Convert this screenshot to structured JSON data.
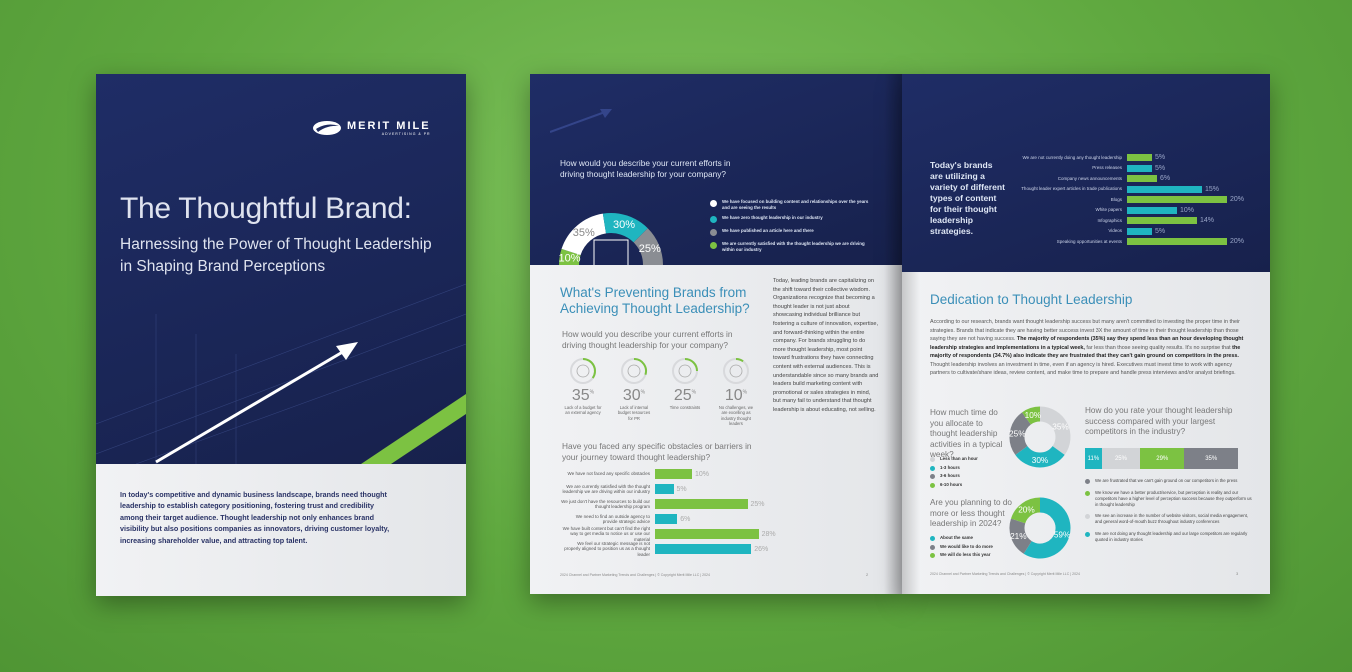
{
  "colors": {
    "navy": "#1e2a5e",
    "teal": "#1fb5c0",
    "green": "#7cc242",
    "gray": "#7d8088",
    "lightgray": "#d2d4d7",
    "white": "#ffffff",
    "heading": "#3b8fb8"
  },
  "cover": {
    "logo": {
      "name": "MERIT MILE",
      "tagline": "ADVERTISING & PR",
      "icon": "swoosh-logo-icon"
    },
    "title": "The Thoughtful Brand:",
    "subtitle_lines": [
      "Harnessing the Power of Thought Leadership",
      "in Shaping Brand Perceptions"
    ],
    "intro": "In today's competitive and dynamic business landscape, brands need thought leadership to establish category positioning, fostering trust and credibility among their target audience. Thought leadership not only enhances brand visibility but also positions companies as innovators, driving customer loyalty, increasing shareholder value, and attracting top talent."
  },
  "left_page": {
    "top_question": "How would you describe your current efforts in driving thought leadership for your company?",
    "donut": {
      "values": [
        10,
        35,
        30,
        25
      ],
      "labels": [
        "10%",
        "35%",
        "30%",
        "25%"
      ],
      "colors": [
        "#7cc242",
        "#ffffff",
        "#1fb5c0",
        "#8a8d93"
      ]
    },
    "legend": [
      {
        "text": "We have focused on building content and relationships over the years and are seeing the results",
        "color": "#ffffff"
      },
      {
        "text": "We have zero thought leadership in our industry",
        "color": "#1fb5c0"
      },
      {
        "text": "We have published an article here and there",
        "color": "#8a8d93"
      },
      {
        "text": "We are currently satisfied with the thought leadership we are driving within our industry",
        "color": "#7cc242"
      }
    ],
    "heading_lines": [
      "What's Preventing Brands from",
      "Achieving Thought Leadership?"
    ],
    "question2": "How would you describe your current efforts in driving thought leadership for your company?",
    "stats": [
      {
        "value": "35",
        "unit": "%",
        "label": "Lack of a budget for an external agency",
        "icon": "money-hand-icon",
        "fraction": 0.35
      },
      {
        "value": "30",
        "unit": "%",
        "label": "Lack of internal budget resources for PR",
        "icon": "gears-icon",
        "fraction": 0.3
      },
      {
        "value": "25",
        "unit": "%",
        "label": "Time constraints",
        "icon": "clock-icon",
        "fraction": 0.25
      },
      {
        "value": "10",
        "unit": "%",
        "label": "No challenges, we are excelling as industry thought leaders",
        "icon": "shield-check-icon",
        "fraction": 0.1
      }
    ],
    "question3": "Have you faced any specific obstacles or barriers in your journey toward thought leadership?",
    "bars": [
      {
        "label": "We have not faced any specific obstacles",
        "value": 10,
        "text": "10%",
        "color": "#7cc242"
      },
      {
        "label": "We are currently satisfied with the thought leadership we are driving within our industry",
        "value": 5,
        "text": "5%",
        "color": "#1fb5c0"
      },
      {
        "label": "We just don't have the resources to build our thought leadership program",
        "value": 25,
        "text": "25%",
        "color": "#7cc242"
      },
      {
        "label": "We need to find an outside agency to provide strategic advice",
        "value": 6,
        "text": "6%",
        "color": "#1fb5c0"
      },
      {
        "label": "We have built content but can't find the right way to get media to notice us or use our material",
        "value": 28,
        "text": "28%",
        "color": "#7cc242"
      },
      {
        "label": "We feel our strategic message is not properly aligned to position us as a thought leader",
        "value": 26,
        "text": "26%",
        "color": "#1fb5c0"
      }
    ],
    "body": "Today, leading brands are capitalizing on the shift toward their collective wisdom. Organizations recognize that becoming a thought leader is not just about showcasing individual brilliance but fostering a culture of innovation, expertise, and forward-thinking within the entire company. For brands struggling to do more thought leadership, most point toward frustrations they have connecting content with external audiences. This is understandable since so many brands and leaders build marketing content with promotional or sales strategies in mind, but many fail to understand that thought leadership is about educating, not selling.",
    "footer": "2024 Channel and Partner Marketing Trends and Challenges  |  © Copyright Merit Mile LLC  |  2024",
    "page_number": "2"
  },
  "right_page": {
    "intro": "Today's brands are utilizing a variety of different types of content for their thought leadership strategies.",
    "bars": [
      {
        "label": "We are not currently doing any thought leadership",
        "value": 5,
        "text": "5%",
        "color": "#7cc242"
      },
      {
        "label": "Press releases",
        "value": 5,
        "text": "5%",
        "color": "#1fb5c0"
      },
      {
        "label": "Company news announcements",
        "value": 6,
        "text": "6%",
        "color": "#7cc242"
      },
      {
        "label": "Thought leader expert articles in trade publications",
        "value": 15,
        "text": "15%",
        "color": "#1fb5c0"
      },
      {
        "label": "Blogs",
        "value": 20,
        "text": "20%",
        "color": "#7cc242"
      },
      {
        "label": "White papers",
        "value": 10,
        "text": "10%",
        "color": "#1fb5c0"
      },
      {
        "label": "Infographics",
        "value": 14,
        "text": "14%",
        "color": "#7cc242"
      },
      {
        "label": "Videos",
        "value": 5,
        "text": "5%",
        "color": "#1fb5c0"
      },
      {
        "label": "Speaking opportunities at events",
        "value": 20,
        "text": "20%",
        "color": "#7cc242"
      }
    ],
    "heading": "Dedication to Thought Leadership",
    "paragraph": [
      {
        "text": "According to our research, brands want thought leadership success but many aren't committed to investing the proper time in their strategies. Brands that indicate they are having better success invest 3X the amount of time in their thought leadership than those saying they are not having success. ",
        "bold": false
      },
      {
        "text": "The majority of respondents (35%) say they spend less than an hour developing thought leadership strategies and implementations in a typical week,",
        "bold": true
      },
      {
        "text": " far less than those seeing quality results. It's no surprise that ",
        "bold": false
      },
      {
        "text": "the majority of respondents (34.7%) also indicate they are frustrated that they can't gain ground on competitors in the press.",
        "bold": true
      },
      {
        "text": " Thought leadership involves an investment in time, even if an agency is hired. Executives must invest time to work with agency partners to cultivate/share ideas, review content, and make time to prepare and handle press interviews and/or analyst briefings.",
        "bold": false
      }
    ],
    "donut1": {
      "question": "How much time do you allocate to thought leadership activities in a typical week?",
      "values": [
        35,
        30,
        25,
        10
      ],
      "labels": [
        "35%",
        "30%",
        "25%",
        "10%"
      ],
      "colors": [
        "#d2d4d7",
        "#1fb5c0",
        "#7d8088",
        "#7cc242"
      ],
      "legend": [
        "Less than an hour",
        "1-3 hours",
        "3-6 hours",
        "6-10 hours"
      ]
    },
    "donut2": {
      "question": "Are you planning to do more or less thought leadership in 2024?",
      "values": [
        59,
        21,
        20
      ],
      "labels": [
        "59%",
        "21%",
        "20%"
      ],
      "colors": [
        "#1fb5c0",
        "#7d8088",
        "#7cc242"
      ],
      "legend": [
        "About the same",
        "We would like to do more",
        "We will do less this year"
      ]
    },
    "stacked": {
      "question": "How do you rate your thought leadership success compared with your largest competitors in the industry?",
      "values": [
        11,
        25,
        29,
        35
      ],
      "labels": [
        "11%",
        "25%",
        "29%",
        "35%"
      ],
      "colors": [
        "#1fb5c0",
        "#d2d4d7",
        "#7cc242",
        "#7d8088"
      ],
      "legend": [
        {
          "text": "We are frustrated that we can't gain ground on our competitors in the press",
          "color": "#7d8088"
        },
        {
          "text": "We know we have a better product/service, but perception is reality and our competitors have a higher level of perception success because they outperform us in thought leadership",
          "color": "#7cc242"
        },
        {
          "text": "We see an increase in the number of website visitors, social media engagement, and general word-of-mouth buzz throughout industry conferences",
          "color": "#d2d4d7"
        },
        {
          "text": "We are not doing any thought leadership and our large competitors are regularly quoted in industry stories",
          "color": "#1fb5c0"
        }
      ]
    },
    "footer": "2024 Channel and Partner Marketing Trends and Challenges  |  © Copyright Merit Mile LLC  |  2024",
    "page_number": "3"
  }
}
